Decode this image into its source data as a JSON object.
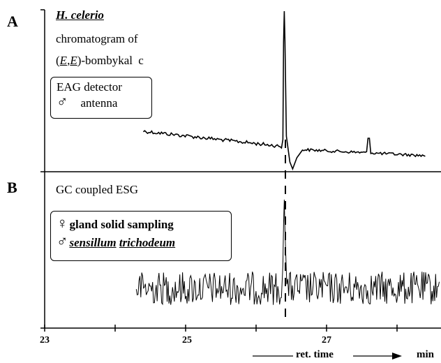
{
  "panel_a": {
    "letter": "A",
    "species": "H. celerio",
    "line2": "chromatogram of",
    "compound_prefix": "(",
    "compound_e1": "E",
    "compound_comma": ",",
    "compound_e2": "E",
    "compound_suffix": ")-bombykal",
    "compound_tag": "c",
    "detector_line1": "EAG detector",
    "detector_symbol": "♂",
    "detector_line2": "antenna"
  },
  "panel_b": {
    "letter": "B",
    "title": "GC coupled ESG",
    "female_symbol": "♀",
    "line1": "gland solid sampling",
    "male_symbol": "♂",
    "line2_w1": "sensillum",
    "line2_w2": "trichodeum"
  },
  "x_axis": {
    "tick_labels": [
      "23",
      "25",
      "27"
    ],
    "caption": "ret. time",
    "unit": "min"
  },
  "chart_data": [
    {
      "type": "line",
      "panel": "A",
      "title": "",
      "xlabel": "ret. time",
      "unit": "min",
      "xlim": [
        23,
        28.6
      ],
      "peak_retention_time_min": 26.4,
      "series": [
        {
          "x": [
            24.4,
            26.3,
            26.4,
            26.6,
            27.8,
            28.4
          ]
        }
      ]
    },
    {
      "type": "line",
      "panel": "B",
      "title": "",
      "xlabel": "ret. time",
      "unit": "min",
      "xlim": [
        23,
        28.6
      ],
      "peak_retention_time_min": 26.4,
      "series": [
        {
          "x": [
            24.3,
            26.3,
            26.4,
            26.5,
            28.6
          ]
        }
      ]
    }
  ]
}
